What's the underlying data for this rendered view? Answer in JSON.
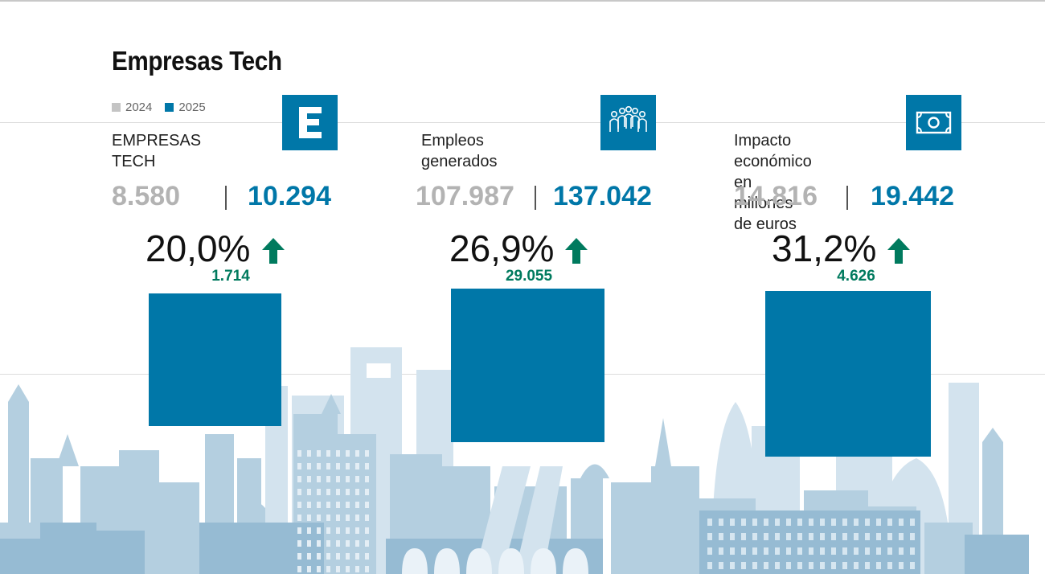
{
  "title": "Empresas Tech",
  "legend": [
    {
      "label": "2024",
      "color": "#c4c4c4"
    },
    {
      "label": "2025",
      "color": "#0077a8"
    }
  ],
  "colors": {
    "accent": "#0077a8",
    "growth": "#007a5e",
    "muted": "#b3b3b3"
  },
  "chart_data": {
    "type": "bar",
    "title": "Empresas Tech",
    "series_names": [
      "2024",
      "2025"
    ],
    "metrics": [
      {
        "label": "EMPRESAS TECH",
        "icon": "letter-e-icon",
        "icon_text": "E",
        "value_2024_text": "8.580",
        "value_2025_text": "10.294",
        "value_2024": 8580,
        "value_2025": 10294,
        "change_pct": "20,0%",
        "delta": "1.714",
        "delta_value": 1714
      },
      {
        "label": "Empleos generados",
        "icon": "people-group-icon",
        "value_2024_text": "107.987",
        "value_2025_text": "137.042",
        "value_2024": 107987,
        "value_2025": 137042,
        "change_pct": "26,9%",
        "delta": "29.055",
        "delta_value": 29055
      },
      {
        "label": "Impacto económico\nen millones de euros",
        "icon": "banknote-icon",
        "value_2024_text": "14.816",
        "value_2025_text": "19.442",
        "value_2024": 14816,
        "value_2025": 19442,
        "change_pct": "31,2%",
        "delta": "4.626",
        "delta_value": 4626
      }
    ],
    "bars_represent": "change_pct",
    "bar_values": [
      20.0,
      26.9,
      31.2
    ]
  }
}
